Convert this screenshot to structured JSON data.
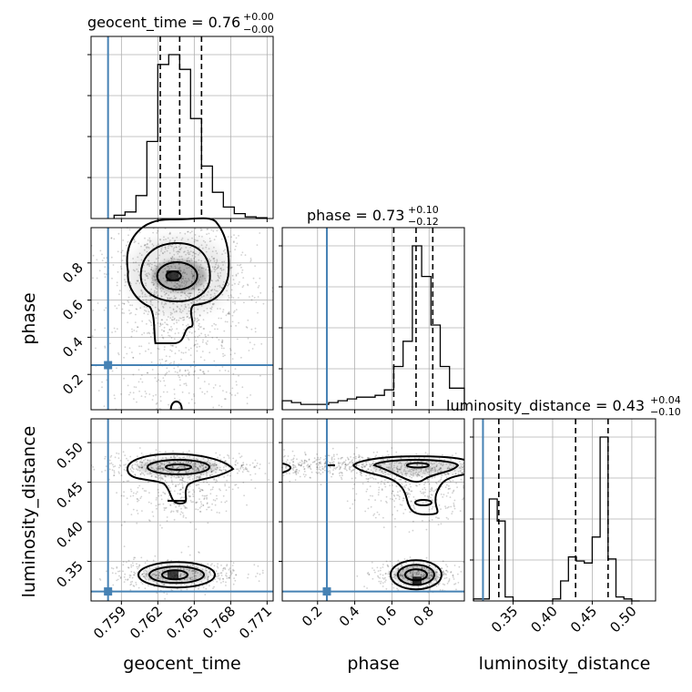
{
  "chart_data": [
    {
      "type": "histogram",
      "panel": "geocent_time marginal",
      "title_param": "geocent_time",
      "title_value": "0.76",
      "title_upper": "+0.00",
      "title_lower": "−0.00",
      "xlim": [
        0.7565,
        0.7715
      ],
      "bin_edges": [
        0.7584,
        0.7593,
        0.7602,
        0.7611,
        0.762,
        0.7629,
        0.7638,
        0.7647,
        0.7656,
        0.7665,
        0.7674,
        0.7683,
        0.7692,
        0.7701,
        0.771
      ],
      "bin_heights": [
        2,
        4,
        14,
        47,
        94,
        100,
        91,
        61,
        32,
        16,
        7,
        3,
        1,
        0.5
      ],
      "quantiles": [
        0.7622,
        0.7638,
        0.7656
      ],
      "truth": 0.7579
    },
    {
      "type": "scatter",
      "panel": "phase vs geocent_time",
      "xlabel": "",
      "ylabel": "phase",
      "xlim": [
        0.7565,
        0.7715
      ],
      "ylim": [
        0.01,
        0.99
      ],
      "yticks": [
        "0.2",
        "0.4",
        "0.6",
        "0.8"
      ],
      "truth": {
        "x": 0.7579,
        "y": 0.25
      },
      "density_peak": {
        "x": 0.7636,
        "y": 0.73
      }
    },
    {
      "type": "histogram",
      "panel": "phase marginal",
      "title_param": "phase",
      "title_value": "0.73",
      "title_upper": "+0.10",
      "title_lower": "−0.12",
      "xlim": [
        0.01,
        0.99
      ],
      "bin_edges": [
        0.01,
        0.06,
        0.11,
        0.16,
        0.21,
        0.26,
        0.31,
        0.36,
        0.41,
        0.46,
        0.51,
        0.56,
        0.61,
        0.66,
        0.71,
        0.76,
        0.81,
        0.86,
        0.91,
        0.99
      ],
      "bin_heights": [
        5,
        4,
        3,
        3,
        3,
        4,
        5,
        6,
        7,
        7,
        8,
        11,
        24,
        38,
        91,
        74,
        47,
        24,
        12
      ],
      "quantiles": [
        0.61,
        0.73,
        0.82
      ],
      "truth": 0.25
    },
    {
      "type": "scatter",
      "panel": "luminosity_distance vs geocent_time",
      "xlabel": "geocent_time",
      "ylabel": "luminosity_distance",
      "xlim": [
        0.7565,
        0.7715
      ],
      "ylim": [
        0.3,
        0.53
      ],
      "xticks": [
        "0.759",
        "0.762",
        "0.765",
        "0.768",
        "0.771"
      ],
      "yticks": [
        "0.35",
        "0.40",
        "0.45",
        "0.50"
      ],
      "truth": {
        "x": 0.7579,
        "y": 0.312
      }
    },
    {
      "type": "scatter",
      "panel": "luminosity_distance vs phase",
      "xlabel": "phase",
      "ylabel": "",
      "xlim": [
        0.01,
        0.99
      ],
      "ylim": [
        0.3,
        0.53
      ],
      "xticks": [
        "0.2",
        "0.4",
        "0.6",
        "0.8"
      ],
      "truth": {
        "x": 0.25,
        "y": 0.312
      }
    },
    {
      "type": "histogram",
      "panel": "luminosity_distance marginal",
      "title_param": "luminosity_distance",
      "title_value": "0.43",
      "title_upper": "+0.04",
      "title_lower": "−0.10",
      "xlim": [
        0.3,
        0.53
      ],
      "xlabel": "luminosity_distance",
      "xticks": [
        "0.35",
        "0.40",
        "0.45",
        "0.50"
      ],
      "bin_edges": [
        0.3,
        0.31,
        0.32,
        0.33,
        0.34,
        0.35,
        0.36,
        0.37,
        0.38,
        0.39,
        0.4,
        0.41,
        0.42,
        0.43,
        0.44,
        0.45,
        0.46,
        0.47,
        0.48,
        0.49,
        0.5,
        0.51
      ],
      "bin_heights": [
        1,
        1,
        51,
        40,
        2,
        0,
        0,
        0,
        0,
        0,
        1,
        10,
        22,
        20,
        19,
        32,
        82,
        21,
        2,
        1,
        0
      ],
      "quantiles": [
        0.332,
        0.429,
        0.47
      ],
      "truth": 0.312
    }
  ]
}
